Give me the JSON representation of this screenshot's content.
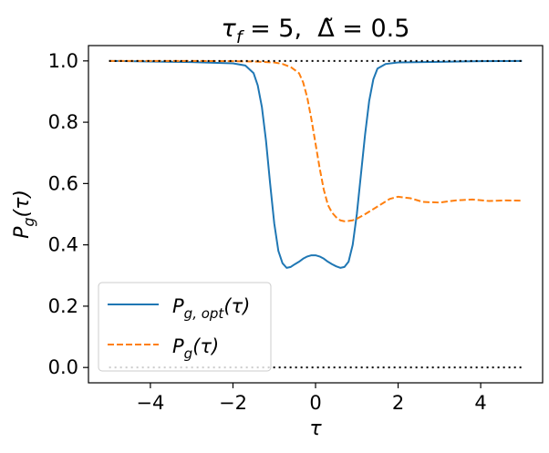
{
  "chart_data": {
    "type": "line",
    "title": "τf = 5,  Δ̃ = 0.5",
    "title_parts": {
      "tau": "τ",
      "tau_sub": "f",
      "eq1": " = 5,  ",
      "delta": "Δ̃",
      "eq2": " = 0.5"
    },
    "xlabel": "τ",
    "ylabel": "Pg(τ)",
    "ylabel_parts": {
      "P": "P",
      "sub": "g",
      "arg": "(τ)"
    },
    "xlim": [
      -5.5,
      5.5
    ],
    "ylim": [
      -0.05,
      1.05
    ],
    "xticks": [
      -4,
      -2,
      0,
      2,
      4
    ],
    "xtick_labels": [
      "−4",
      "−2",
      "0",
      "2",
      "4"
    ],
    "yticks": [
      0.0,
      0.2,
      0.4,
      0.6,
      0.8,
      1.0
    ],
    "ytick_labels": [
      "0.0",
      "0.2",
      "0.4",
      "0.6",
      "0.8",
      "1.0"
    ],
    "grid": false,
    "legend_position": "lower-left",
    "series": [
      {
        "name": "Pg,opt(τ)",
        "legend_parts": {
          "P": "P",
          "sub": "g, opt",
          "arg": "(τ)"
        },
        "color": "#1f77b4",
        "style": "solid",
        "x": [
          -5.0,
          -4.0,
          -3.0,
          -2.0,
          -1.7,
          -1.5,
          -1.4,
          -1.3,
          -1.2,
          -1.1,
          -1.0,
          -0.9,
          -0.8,
          -0.7,
          -0.6,
          -0.5,
          -0.4,
          -0.3,
          -0.2,
          -0.1,
          0.0,
          0.1,
          0.2,
          0.3,
          0.4,
          0.5,
          0.6,
          0.7,
          0.8,
          0.9,
          1.0,
          1.1,
          1.2,
          1.3,
          1.4,
          1.5,
          1.7,
          2.0,
          3.0,
          4.0,
          5.0
        ],
        "y": [
          1.0,
          0.998,
          0.996,
          0.992,
          0.985,
          0.96,
          0.92,
          0.85,
          0.74,
          0.6,
          0.47,
          0.38,
          0.34,
          0.325,
          0.328,
          0.337,
          0.345,
          0.355,
          0.362,
          0.366,
          0.366,
          0.362,
          0.355,
          0.345,
          0.337,
          0.33,
          0.325,
          0.328,
          0.345,
          0.4,
          0.5,
          0.63,
          0.76,
          0.87,
          0.94,
          0.975,
          0.99,
          0.995,
          0.997,
          0.999,
          1.0
        ]
      },
      {
        "name": "Pg(τ)",
        "legend_parts": {
          "P": "P",
          "sub": "g",
          "arg": "(τ)"
        },
        "color": "#ff7f0e",
        "style": "dashed",
        "x": [
          -5.0,
          -3.0,
          -2.0,
          -1.5,
          -1.0,
          -0.8,
          -0.6,
          -0.4,
          -0.3,
          -0.2,
          -0.1,
          0.0,
          0.1,
          0.2,
          0.3,
          0.4,
          0.5,
          0.6,
          0.7,
          0.8,
          0.9,
          1.0,
          1.2,
          1.5,
          1.8,
          2.0,
          2.3,
          2.6,
          3.0,
          3.4,
          3.8,
          4.2,
          4.6,
          5.0
        ],
        "y": [
          1.0,
          1.0,
          0.999,
          0.998,
          0.995,
          0.99,
          0.98,
          0.96,
          0.93,
          0.88,
          0.81,
          0.73,
          0.65,
          0.58,
          0.53,
          0.505,
          0.49,
          0.48,
          0.477,
          0.478,
          0.48,
          0.485,
          0.5,
          0.525,
          0.55,
          0.557,
          0.552,
          0.54,
          0.538,
          0.545,
          0.548,
          0.543,
          0.545,
          0.544
        ]
      }
    ],
    "reference_lines": [
      {
        "y": 1.0,
        "x_range": [
          -5.0,
          5.0
        ],
        "color": "#000000",
        "style": "dotted"
      },
      {
        "y": 0.0,
        "x_range": [
          -5.0,
          5.0
        ],
        "color": "#000000",
        "style": "dotted"
      }
    ]
  },
  "colors": {
    "series_1": "#1f77b4",
    "series_2": "#ff7f0e",
    "axes": "#000000",
    "background": "#ffffff",
    "legend_border": "#cccccc"
  }
}
